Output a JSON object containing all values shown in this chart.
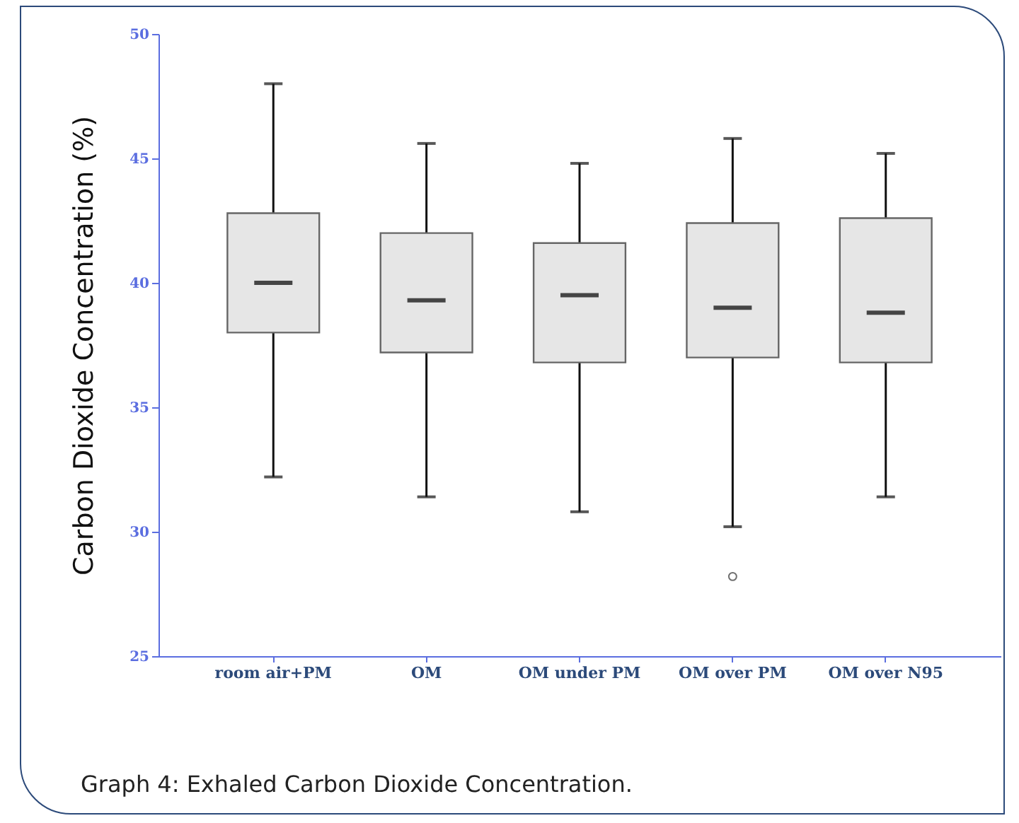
{
  "chart_data": {
    "type": "box",
    "ylabel": "Carbon Dioxide Concentration (%)",
    "categories": [
      "room air+PM",
      "OM",
      "OM under PM",
      "OM over PM",
      "OM over N95"
    ],
    "boxes": [
      {
        "low": 32.2,
        "q1": 38.0,
        "median": 40.0,
        "q3": 42.8,
        "high": 48.0
      },
      {
        "low": 31.4,
        "q1": 37.2,
        "median": 39.3,
        "q3": 42.0,
        "high": 45.6
      },
      {
        "low": 30.8,
        "q1": 36.8,
        "median": 39.5,
        "q3": 41.6,
        "high": 44.8
      },
      {
        "low": 30.2,
        "q1": 37.0,
        "median": 39.0,
        "q3": 42.4,
        "high": 45.8,
        "outliers": [
          28.2
        ]
      },
      {
        "low": 31.4,
        "q1": 36.8,
        "median": 38.8,
        "q3": 42.6,
        "high": 45.2
      }
    ],
    "color": "#e6e6e6",
    "ylim": [
      25,
      50
    ],
    "yticks": [
      25,
      30,
      35,
      40,
      45,
      50
    ],
    "grid": false,
    "annotations": [
      "Graph 4: Exhaled Carbon Dioxide Concentration."
    ]
  }
}
